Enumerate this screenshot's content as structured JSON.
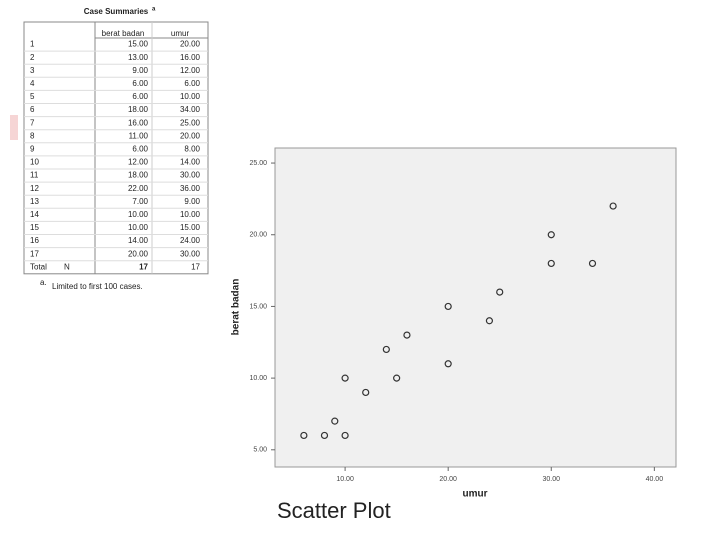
{
  "table": {
    "title": "Case Summaries",
    "title_note": "a",
    "columns": [
      "berat badan",
      "umur"
    ],
    "rows": [
      [
        "1",
        "15.00",
        "20.00"
      ],
      [
        "2",
        "13.00",
        "16.00"
      ],
      [
        "3",
        "9.00",
        "12.00"
      ],
      [
        "4",
        "6.00",
        "6.00"
      ],
      [
        "5",
        "6.00",
        "10.00"
      ],
      [
        "6",
        "18.00",
        "34.00"
      ],
      [
        "7",
        "16.00",
        "25.00"
      ],
      [
        "8",
        "11.00",
        "20.00"
      ],
      [
        "9",
        "6.00",
        "8.00"
      ],
      [
        "10",
        "12.00",
        "14.00"
      ],
      [
        "11",
        "18.00",
        "30.00"
      ],
      [
        "12",
        "22.00",
        "36.00"
      ],
      [
        "13",
        "7.00",
        "9.00"
      ],
      [
        "14",
        "10.00",
        "10.00"
      ],
      [
        "15",
        "10.00",
        "15.00"
      ],
      [
        "16",
        "14.00",
        "24.00"
      ],
      [
        "17",
        "20.00",
        "30.00"
      ]
    ],
    "total": {
      "label": "Total",
      "stat": "N",
      "values": [
        "17",
        "17"
      ]
    },
    "footnote": {
      "marker": "a.",
      "text": "Limited to first 100 cases."
    }
  },
  "chart_data": {
    "type": "scatter",
    "title": "Scatter Plot",
    "x_label": "umur",
    "y_label": "berat badan",
    "x": [
      20,
      16,
      12,
      6,
      10,
      34,
      25,
      20,
      8,
      14,
      30,
      36,
      9,
      10,
      15,
      24,
      30
    ],
    "y": [
      15,
      13,
      9,
      6,
      6,
      18,
      16,
      11,
      6,
      12,
      18,
      22,
      7,
      10,
      10,
      14,
      20
    ],
    "color": "#333333",
    "xlim": [
      3.2,
      42.1
    ],
    "ylim": [
      3.8,
      26.05
    ],
    "xticks": [
      {
        "value": 10,
        "label": "10.00"
      },
      {
        "value": 20,
        "label": "20.00"
      },
      {
        "value": 30,
        "label": "30.00"
      },
      {
        "value": 40,
        "label": "40.00"
      }
    ],
    "yticks": [
      {
        "value": 5,
        "label": "5.00"
      },
      {
        "value": 10,
        "label": "10.00"
      },
      {
        "value": 15,
        "label": "15.00"
      },
      {
        "value": 20,
        "label": "20.00"
      },
      {
        "value": 25,
        "label": "25.00"
      }
    ]
  }
}
